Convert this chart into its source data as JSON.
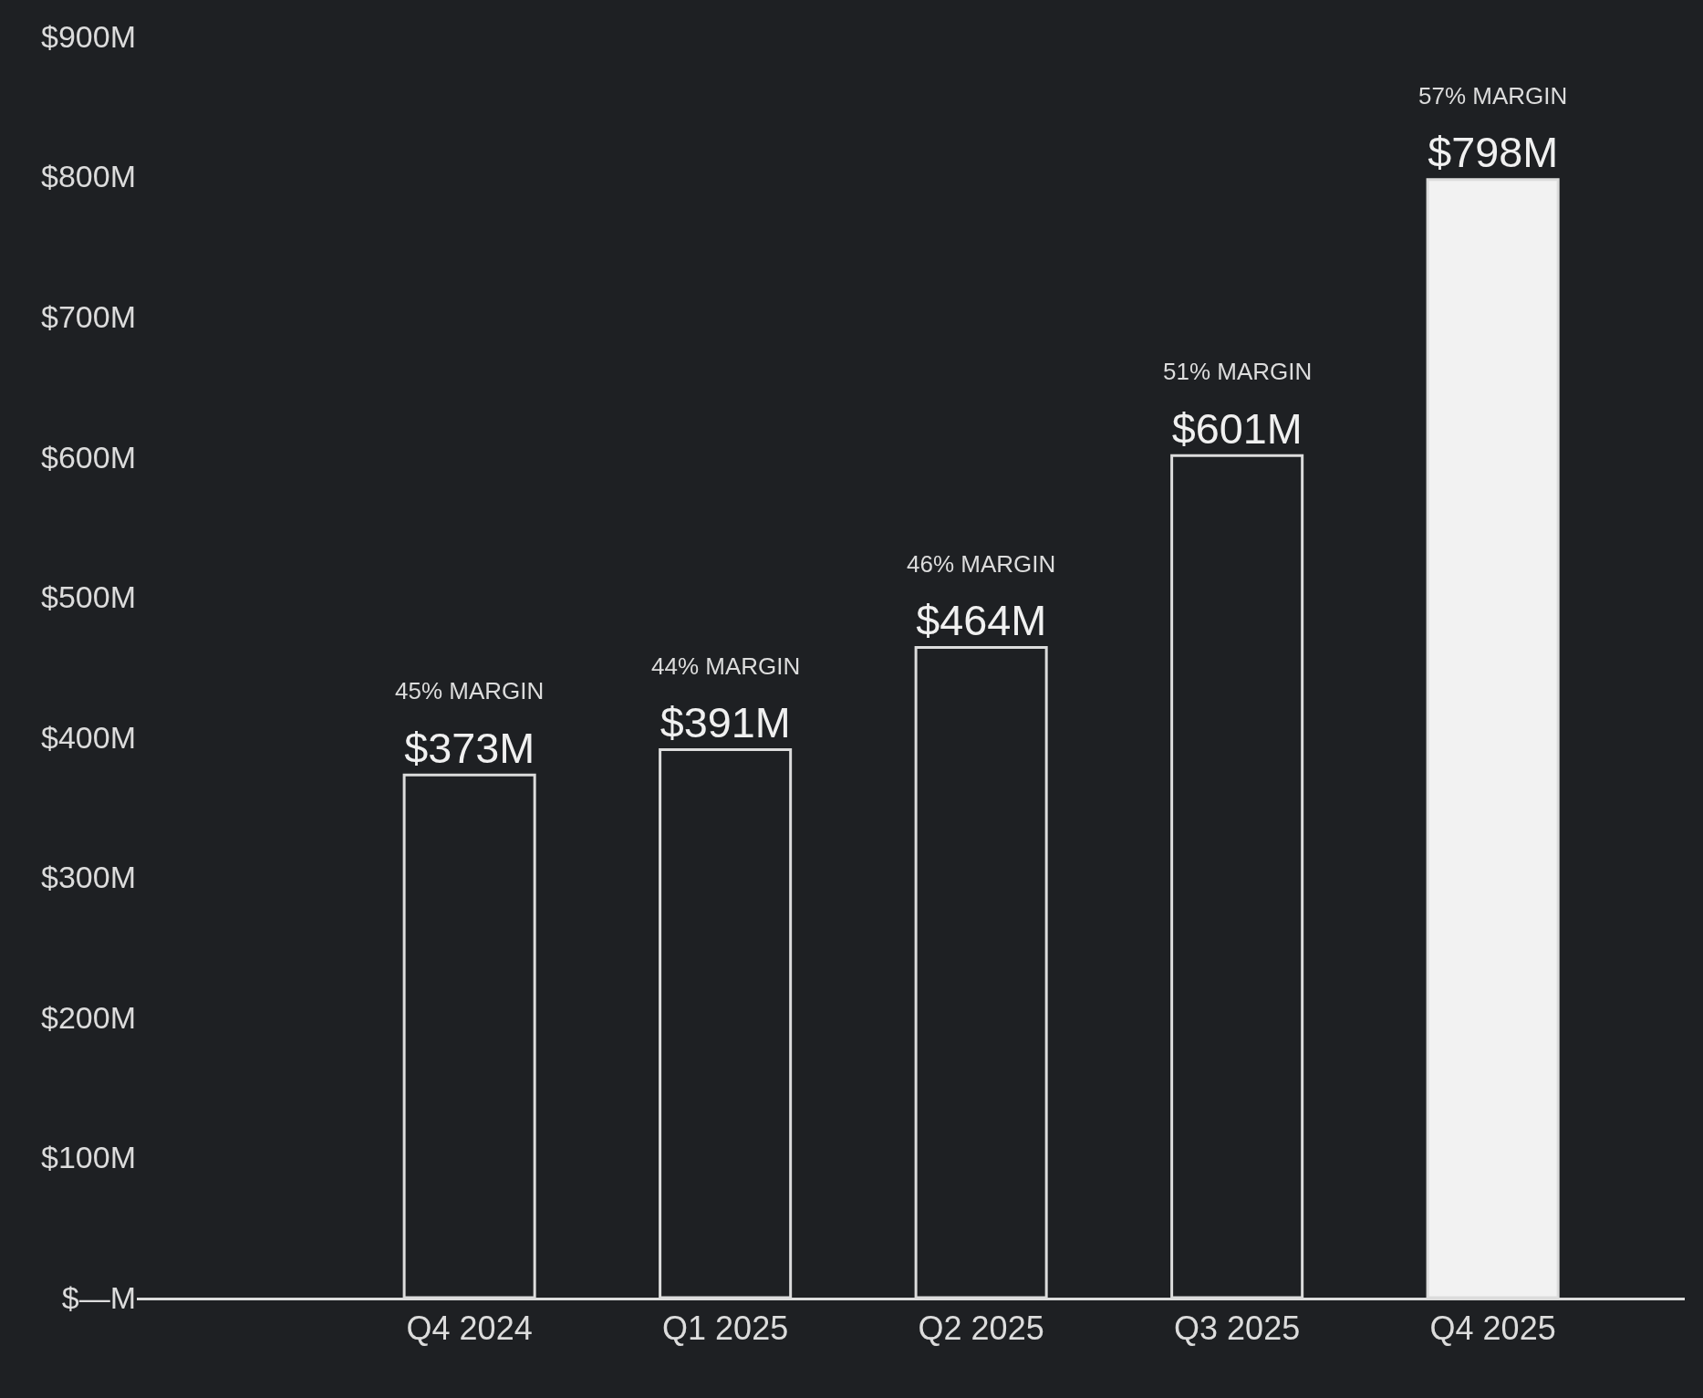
{
  "chart_data": {
    "type": "bar",
    "categories": [
      "Q4 2024",
      "Q1 2025",
      "Q2 2025",
      "Q3 2025",
      "Q4 2025"
    ],
    "values": [
      373,
      391,
      464,
      601,
      798
    ],
    "colors": [
      "#1e2023",
      "#1e2023",
      "#1e2023",
      "#1e2023",
      "#f2f2f2"
    ],
    "value_labels": [
      "$373M",
      "$391M",
      "$464M",
      "$601M",
      "$798M"
    ],
    "annotations": [
      "45% MARGIN",
      "44% MARGIN",
      "46% MARGIN",
      "51% MARGIN",
      "57% MARGIN"
    ],
    "ylim": [
      0,
      900
    ],
    "yticks": [
      {
        "value": 0,
        "label": "$—M"
      },
      {
        "value": 100,
        "label": "$100M"
      },
      {
        "value": 200,
        "label": "$200M"
      },
      {
        "value": 300,
        "label": "$300M"
      },
      {
        "value": 400,
        "label": "$400M"
      },
      {
        "value": 500,
        "label": "$500M"
      },
      {
        "value": 600,
        "label": "$600M"
      },
      {
        "value": 700,
        "label": "$700M"
      },
      {
        "value": 800,
        "label": "$800M"
      },
      {
        "value": 900,
        "label": "$900M"
      }
    ],
    "grid": false,
    "legend": false
  }
}
